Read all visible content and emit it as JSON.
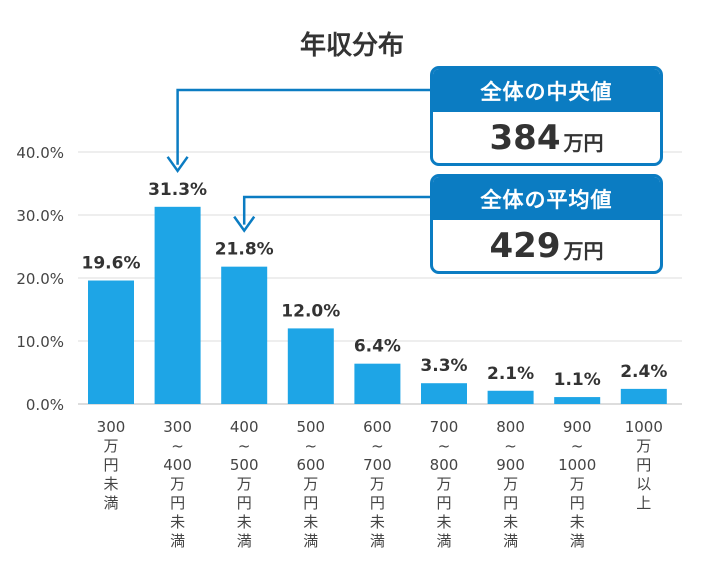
{
  "chart_data": {
    "type": "bar",
    "title": "年収分布",
    "categories": [
      [
        "300",
        "万",
        "円",
        "未",
        "満"
      ],
      [
        "300",
        "~",
        "400",
        "万",
        "円",
        "未",
        "満"
      ],
      [
        "400",
        "~",
        "500",
        "万",
        "円",
        "未",
        "満"
      ],
      [
        "500",
        "~",
        "600",
        "万",
        "円",
        "未",
        "満"
      ],
      [
        "600",
        "~",
        "700",
        "万",
        "円",
        "未",
        "満"
      ],
      [
        "700",
        "~",
        "800",
        "万",
        "円",
        "未",
        "満"
      ],
      [
        "800",
        "~",
        "900",
        "万",
        "円",
        "未",
        "満"
      ],
      [
        "900",
        "~",
        "1000",
        "万",
        "円",
        "未",
        "満"
      ],
      [
        "1000",
        "万",
        "円",
        "以",
        "上"
      ]
    ],
    "values": [
      19.6,
      31.3,
      21.8,
      12.0,
      6.4,
      3.3,
      2.1,
      1.1,
      2.4
    ],
    "data_labels": [
      "19.6%",
      "31.3%",
      "21.8%",
      "12.0%",
      "6.4%",
      "3.3%",
      "2.1%",
      "1.1%",
      "2.4%"
    ],
    "ylim": [
      0,
      40
    ],
    "yticks": [
      0,
      10,
      20,
      30,
      40
    ],
    "ytick_labels": [
      "0.0%",
      "10.0%",
      "20.0%",
      "30.0%",
      "40.0%"
    ],
    "grid": true,
    "xlabel": "",
    "ylabel": "",
    "colors": {
      "bar": "#1ea5e6",
      "callout": "#0b7cc2",
      "grid": "#dddddd",
      "text": "#333333"
    },
    "annotations": [
      {
        "title": "全体の中央値",
        "value": "384",
        "unit": "万円",
        "points_to_category_index": 1
      },
      {
        "title": "全体の平均値",
        "value": "429",
        "unit": "万円",
        "points_to_category_index": 2
      }
    ]
  }
}
